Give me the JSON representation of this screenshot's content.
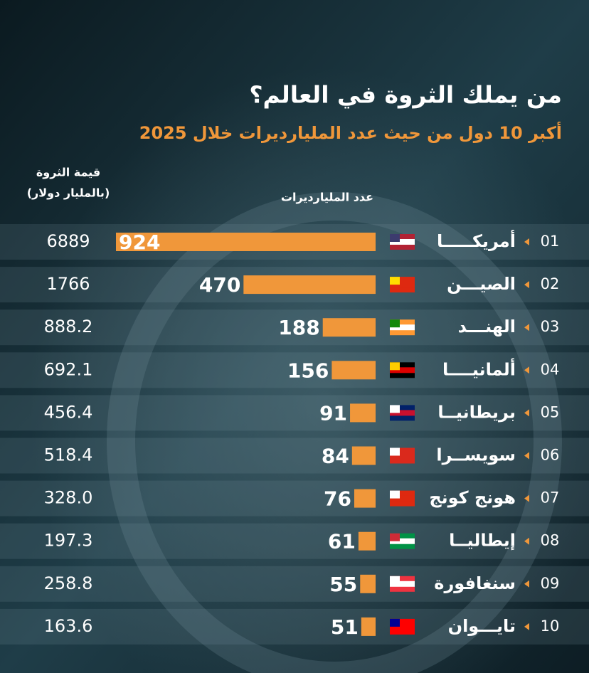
{
  "chart_data": {
    "type": "bar",
    "title": "من يملك الثروة في العالم؟",
    "subtitle": "أكبر 10 دول من حيث عدد المليارديرات خلال 2025",
    "wealth_header": [
      "قيمة الثروة",
      "(بالمليار دولار)"
    ],
    "count_header": "عدد المليارديرات",
    "ranks": [
      "01",
      "02",
      "03",
      "04",
      "05",
      "06",
      "07",
      "08",
      "09",
      "10"
    ],
    "categories": [
      "أمريكـــــا",
      "الصيـــن",
      "الهنـــد",
      "ألمانيــــا",
      "بريطانيــا",
      "سويســرا",
      "هونج كونج",
      "إيطاليــا",
      "سنغافورة",
      "تايـــوان"
    ],
    "values": [
      924,
      470,
      188,
      156,
      91,
      84,
      76,
      61,
      55,
      51
    ],
    "wealth": [
      "6889",
      "1766",
      "888.2",
      "692.1",
      "456.4",
      "518.4",
      "328.0",
      "197.3",
      "258.8",
      "163.6"
    ],
    "color": "#f0973a"
  }
}
